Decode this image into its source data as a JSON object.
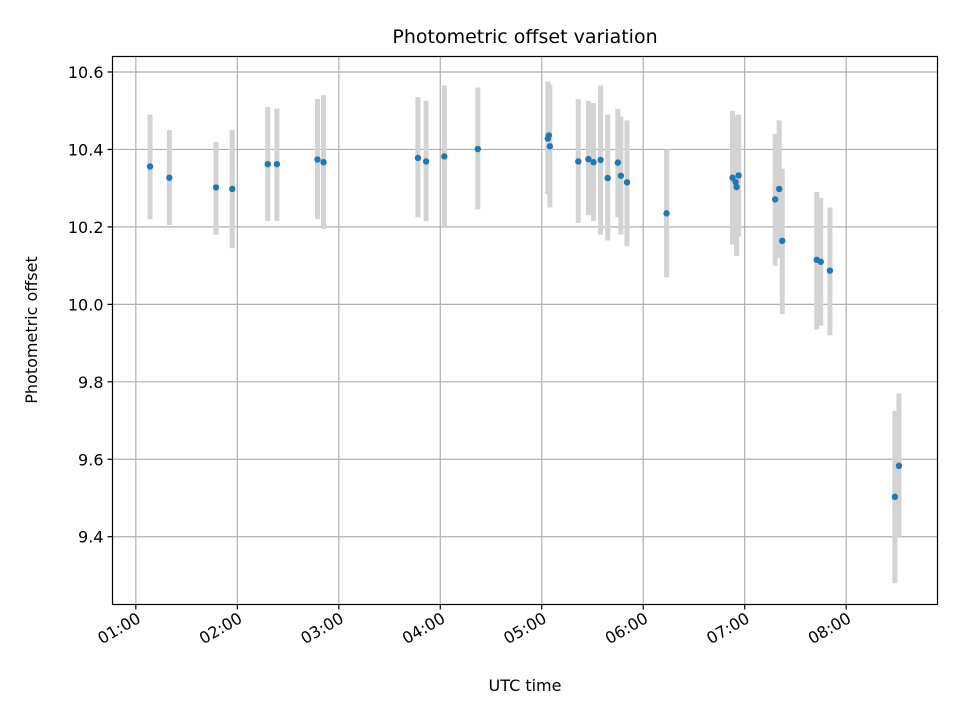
{
  "chart_data": {
    "type": "scatter",
    "title": "Photometric offset variation",
    "xlabel": "UTC time",
    "ylabel": "Photometric offset",
    "x_unit": "hours UTC",
    "xlim": [
      0.77,
      8.9
    ],
    "ylim": [
      9.225,
      10.64
    ],
    "grid": true,
    "x_ticks": [
      {
        "value": 1,
        "label": "01:00"
      },
      {
        "value": 2,
        "label": "02:00"
      },
      {
        "value": 3,
        "label": "03:00"
      },
      {
        "value": 4,
        "label": "04:00"
      },
      {
        "value": 5,
        "label": "05:00"
      },
      {
        "value": 6,
        "label": "06:00"
      },
      {
        "value": 7,
        "label": "07:00"
      },
      {
        "value": 8,
        "label": "08:00"
      }
    ],
    "y_ticks": [
      {
        "value": 9.4,
        "label": "9.4"
      },
      {
        "value": 9.6,
        "label": "9.6"
      },
      {
        "value": 9.8,
        "label": "9.8"
      },
      {
        "value": 10.0,
        "label": "10.0"
      },
      {
        "value": 10.2,
        "label": "10.2"
      },
      {
        "value": 10.4,
        "label": "10.4"
      },
      {
        "value": 10.6,
        "label": "10.6"
      }
    ],
    "colors": {
      "point": "#1f77b4",
      "errorbar": "#d3d3d3",
      "grid": "#b0b0b0"
    },
    "points": [
      {
        "x": 1.14,
        "y": 10.356,
        "lo": 10.22,
        "hi": 10.49
      },
      {
        "x": 1.33,
        "y": 10.327,
        "lo": 10.205,
        "hi": 10.45
      },
      {
        "x": 1.79,
        "y": 10.302,
        "lo": 10.18,
        "hi": 10.42
      },
      {
        "x": 1.95,
        "y": 10.298,
        "lo": 10.145,
        "hi": 10.45
      },
      {
        "x": 2.3,
        "y": 10.362,
        "lo": 10.215,
        "hi": 10.51
      },
      {
        "x": 2.39,
        "y": 10.362,
        "lo": 10.215,
        "hi": 10.505
      },
      {
        "x": 2.79,
        "y": 10.374,
        "lo": 10.22,
        "hi": 10.53
      },
      {
        "x": 2.85,
        "y": 10.367,
        "lo": 10.195,
        "hi": 10.54
      },
      {
        "x": 3.78,
        "y": 10.378,
        "lo": 10.225,
        "hi": 10.535
      },
      {
        "x": 3.86,
        "y": 10.369,
        "lo": 10.215,
        "hi": 10.525
      },
      {
        "x": 4.04,
        "y": 10.382,
        "lo": 10.2,
        "hi": 10.565
      },
      {
        "x": 4.37,
        "y": 10.401,
        "lo": 10.245,
        "hi": 10.56
      },
      {
        "x": 5.06,
        "y": 10.428,
        "lo": 10.285,
        "hi": 10.575
      },
      {
        "x": 5.07,
        "y": 10.436,
        "lo": 10.29,
        "hi": 10.57
      },
      {
        "x": 5.08,
        "y": 10.408,
        "lo": 10.25,
        "hi": 10.565
      },
      {
        "x": 5.36,
        "y": 10.369,
        "lo": 10.21,
        "hi": 10.53
      },
      {
        "x": 5.46,
        "y": 10.375,
        "lo": 10.23,
        "hi": 10.525
      },
      {
        "x": 5.51,
        "y": 10.367,
        "lo": 10.215,
        "hi": 10.52
      },
      {
        "x": 5.58,
        "y": 10.373,
        "lo": 10.18,
        "hi": 10.565
      },
      {
        "x": 5.65,
        "y": 10.326,
        "lo": 10.165,
        "hi": 10.49
      },
      {
        "x": 5.75,
        "y": 10.366,
        "lo": 10.225,
        "hi": 10.505
      },
      {
        "x": 5.78,
        "y": 10.332,
        "lo": 10.18,
        "hi": 10.485
      },
      {
        "x": 5.84,
        "y": 10.315,
        "lo": 10.15,
        "hi": 10.475
      },
      {
        "x": 6.23,
        "y": 10.235,
        "lo": 10.07,
        "hi": 10.4
      },
      {
        "x": 6.88,
        "y": 10.327,
        "lo": 10.155,
        "hi": 10.5
      },
      {
        "x": 6.91,
        "y": 10.316,
        "lo": 10.165,
        "hi": 10.47
      },
      {
        "x": 6.92,
        "y": 10.303,
        "lo": 10.125,
        "hi": 10.485
      },
      {
        "x": 6.94,
        "y": 10.333,
        "lo": 10.175,
        "hi": 10.49
      },
      {
        "x": 7.3,
        "y": 10.271,
        "lo": 10.1,
        "hi": 10.44
      },
      {
        "x": 7.34,
        "y": 10.298,
        "lo": 10.12,
        "hi": 10.475
      },
      {
        "x": 7.37,
        "y": 10.164,
        "lo": 9.975,
        "hi": 10.35
      },
      {
        "x": 7.71,
        "y": 10.115,
        "lo": 9.935,
        "hi": 10.29
      },
      {
        "x": 7.75,
        "y": 10.11,
        "lo": 9.945,
        "hi": 10.275
      },
      {
        "x": 7.84,
        "y": 10.087,
        "lo": 9.92,
        "hi": 10.25
      },
      {
        "x": 8.48,
        "y": 9.503,
        "lo": 9.28,
        "hi": 9.725
      },
      {
        "x": 8.52,
        "y": 9.583,
        "lo": 9.4,
        "hi": 9.77
      }
    ]
  }
}
